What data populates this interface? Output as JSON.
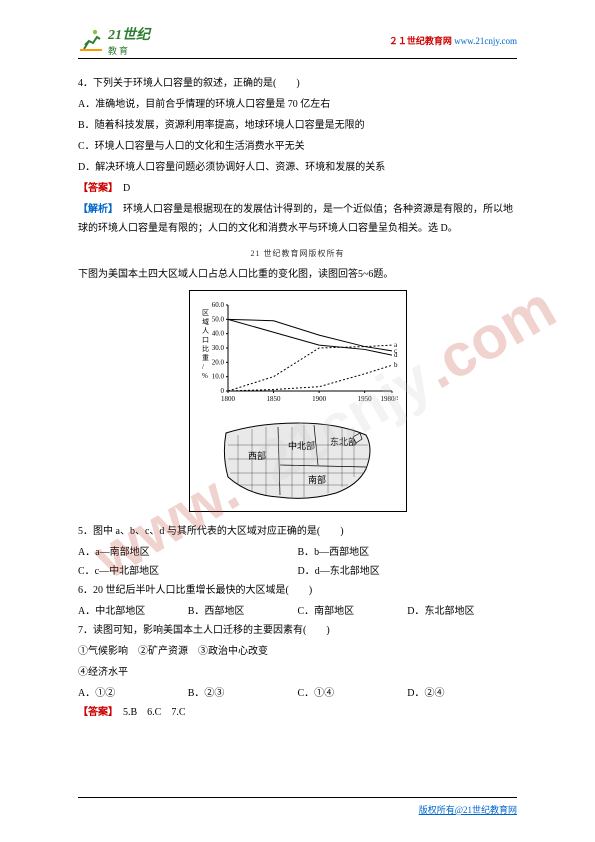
{
  "header": {
    "logo_main": "21世纪",
    "logo_sub": "教育",
    "site_label": "２１世纪教育网",
    "site_url": "www.21cnjy.com"
  },
  "footer": {
    "text": "版权所有@21世纪教育网"
  },
  "watermark_note": "21 世纪教育网版权所有",
  "q1": {
    "stem": "4．下列关于环境人口容量的叙述，正确的是(　　)",
    "optA": "A．准确地说，目前合乎情理的环境人口容量是 70 亿左右",
    "optB": "B．随着科技发展，资源利用率提高，地球环境人口容量是无限的",
    "optC": "C．环境人口容量与人口的文化和生活消费水平无关",
    "optD": "D．解决环境人口容量问题必须协调好人口、资源、环境和发展的关系",
    "answer_label": "【答案】",
    "answer_text": "　D",
    "analysis_label": "【解析】",
    "analysis_text": "　环境人口容量是根据现在的发展估计得到的，是一个近似值；各种资源是有限的，所以地球的环境人口容量是有限的；人口的文化和消费水平与环境人口容量呈负相关。选 D。"
  },
  "fig": {
    "intro_line": "下图为美国本土四大区域人口占总人口比重的变化图，读图回答5~6题。",
    "chart": {
      "type": "line",
      "ylabel_lines": [
        "区",
        "域",
        "人",
        "口",
        "比",
        "重",
        "/",
        "%"
      ],
      "xticks": [
        "1800",
        "1850",
        "1900",
        "1950",
        "1980/年"
      ],
      "yticks": [
        "0",
        "10.0",
        "20.0",
        "30.0",
        "40.0",
        "50.0",
        "60.0"
      ],
      "ylim": [
        0,
        60
      ],
      "xlim": [
        1800,
        1980
      ],
      "series": {
        "c": {
          "label": "c",
          "points": [
            [
              1800,
              50
            ],
            [
              1850,
              49
            ],
            [
              1900,
              39
            ],
            [
              1950,
              31
            ],
            [
              1980,
              28
            ]
          ]
        },
        "d": {
          "label": "d",
          "points": [
            [
              1800,
              50
            ],
            [
              1850,
              41
            ],
            [
              1900,
              32
            ],
            [
              1950,
              29
            ],
            [
              1980,
              25
            ]
          ]
        },
        "a": {
          "label": "a",
          "points": [
            [
              1800,
              0
            ],
            [
              1850,
              10
            ],
            [
              1900,
              30
            ],
            [
              1950,
              31
            ],
            [
              1980,
              32
            ]
          ]
        },
        "b": {
          "label": "b",
          "points": [
            [
              1800,
              0
            ],
            [
              1850,
              1
            ],
            [
              1900,
              3
            ],
            [
              1950,
              12
            ],
            [
              1980,
              18
            ]
          ]
        }
      },
      "line_color": "#000000",
      "line_width": 1,
      "dash_patterns": {
        "c": "none",
        "d": "none",
        "a": "2,2",
        "b": "2,2"
      },
      "font_size": 7
    },
    "map": {
      "type": "map-schematic",
      "labels": [
        "西部",
        "中北部",
        "东北部",
        "南部"
      ],
      "stroke": "#000000",
      "fill": "#e9e9e9"
    }
  },
  "q5": {
    "stem": "5．图中 a、b、c、d 与其所代表的大区域对应正确的是(　　)",
    "optA": "A．a—南部地区",
    "optB": "B．b—西部地区",
    "optC": "C．c—中北部地区",
    "optD": "D．d—东北部地区"
  },
  "q6": {
    "stem": "6．20 世纪后半叶人口比重增长最快的大区域是(　　)",
    "optA": "A．中北部地区",
    "optB": "B．西部地区",
    "optC": "C．南部地区",
    "optD": "D．东北部地区"
  },
  "q7": {
    "stem_l1": "7．读图可知，影响美国本土人口迁移的主要因素有(　　)",
    "stem_l2a": "①气候影响　②矿产资源　③政治中心改变",
    "stem_l2b": "④经济水平",
    "optA": "A．①②",
    "optB": "B．②③",
    "optC": "C．①④",
    "optD": "D．②④",
    "answer_label": "【答案】",
    "answer_text": "　5.B　6.C　7.C"
  }
}
